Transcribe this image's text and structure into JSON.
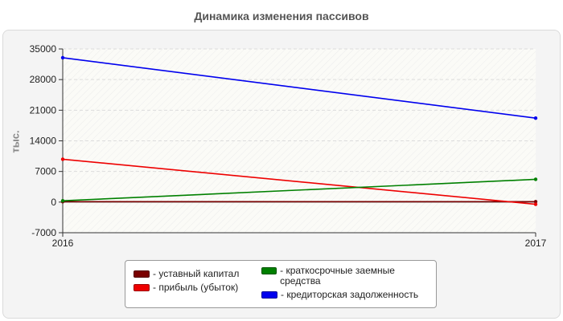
{
  "chart_data": {
    "type": "line",
    "title": "Динамика изменения пассивов",
    "xlabel": "",
    "ylabel": "тыс.",
    "x": [
      "2016",
      "2017"
    ],
    "ylim": [
      -7000,
      35000
    ],
    "yticks": [
      "35000",
      "28000",
      "21000",
      "14000",
      "7000",
      "0",
      "-7000"
    ],
    "series": [
      {
        "name": "- уставный капитал",
        "values": [
          100,
          100
        ],
        "color": "#7a0000"
      },
      {
        "name": "- прибыль (убыток)",
        "values": [
          9800,
          -500
        ],
        "color": "#ee0000"
      },
      {
        "name": "- краткосрочные заемные средства",
        "values": [
          300,
          5200
        ],
        "color": "#008000"
      },
      {
        "name": "- кредиторская задолженность",
        "values": [
          33000,
          19200
        ],
        "color": "#0000ee"
      }
    ],
    "legend_position": "bottom",
    "grid": true
  }
}
